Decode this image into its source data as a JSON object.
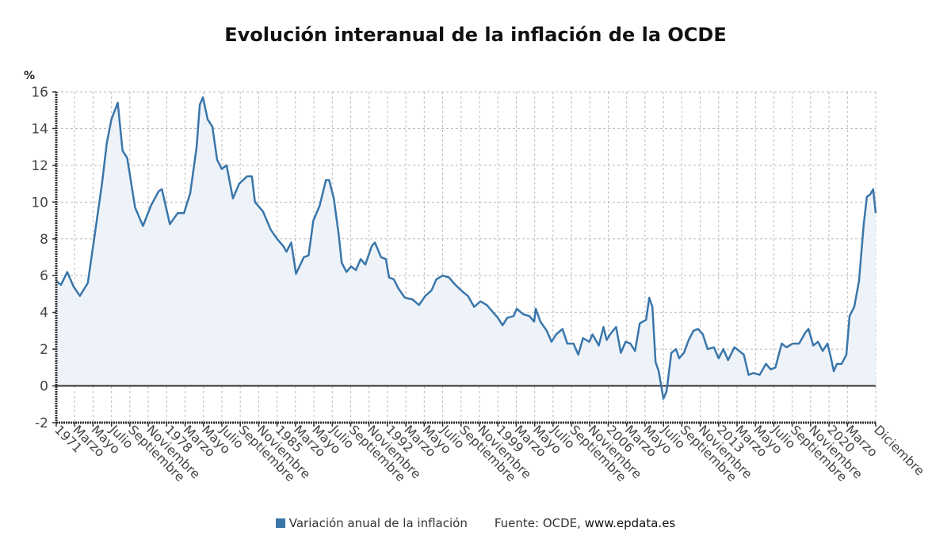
{
  "chart_data": {
    "type": "area",
    "title": "Evolución interanual de la inflación de la OCDE",
    "ylabel": "%",
    "xlabel": "",
    "ylim": [
      -2,
      16
    ],
    "yticks": [
      -2,
      0,
      2,
      4,
      6,
      8,
      10,
      12,
      14,
      16
    ],
    "xlim": [
      1971.0,
      2022.96
    ],
    "grid": true,
    "x_tick_step_months": 14,
    "x_tick_labels": [
      "1971",
      "Marzo",
      "Mayo",
      "Julio",
      "Septiembre",
      "Noviembre",
      "1978",
      "Marzo",
      "Mayo",
      "Julio",
      "Septiembre",
      "Noviembre",
      "1985",
      "Marzo",
      "Mayo",
      "Julio",
      "Septiembre",
      "Noviembre",
      "1992",
      "Marzo",
      "Mayo",
      "Julio",
      "Septiembre",
      "Noviembre",
      "1999",
      "Marzo",
      "Mayo",
      "Julio",
      "Septiembre",
      "Noviembre",
      "2006",
      "Marzo",
      "Mayo",
      "Julio",
      "Septiembre",
      "Noviembre",
      "2013",
      "Marzo",
      "Mayo",
      "Julio",
      "Septiembre",
      "Noviembre",
      "2020",
      "Marzo",
      "Diciembre"
    ],
    "legend": {
      "position": "bottom",
      "entries": [
        "Variación anual de la inflación"
      ]
    },
    "source": "Fuente: OCDE,",
    "source_web": "www.epdata.es",
    "series": [
      {
        "name": "Variación anual de la inflación",
        "color": "#3a76aa",
        "points": [
          [
            1971.0,
            5.7
          ],
          [
            1971.3,
            5.5
          ],
          [
            1971.7,
            6.2
          ],
          [
            1972.1,
            5.4
          ],
          [
            1972.5,
            4.9
          ],
          [
            1973.0,
            5.6
          ],
          [
            1973.4,
            8.0
          ],
          [
            1973.9,
            11.0
          ],
          [
            1974.2,
            13.2
          ],
          [
            1974.5,
            14.5
          ],
          [
            1974.9,
            15.4
          ],
          [
            1975.2,
            12.8
          ],
          [
            1975.5,
            12.4
          ],
          [
            1976.0,
            9.7
          ],
          [
            1976.5,
            8.7
          ],
          [
            1977.0,
            9.8
          ],
          [
            1977.5,
            10.6
          ],
          [
            1977.7,
            10.7
          ],
          [
            1978.2,
            8.8
          ],
          [
            1978.7,
            9.4
          ],
          [
            1979.1,
            9.4
          ],
          [
            1979.5,
            10.5
          ],
          [
            1979.9,
            13.0
          ],
          [
            1980.1,
            15.3
          ],
          [
            1980.3,
            15.7
          ],
          [
            1980.6,
            14.5
          ],
          [
            1980.9,
            14.1
          ],
          [
            1981.2,
            12.3
          ],
          [
            1981.5,
            11.8
          ],
          [
            1981.8,
            12.0
          ],
          [
            1982.2,
            10.2
          ],
          [
            1982.6,
            11.0
          ],
          [
            1983.1,
            11.4
          ],
          [
            1983.4,
            11.4
          ],
          [
            1983.6,
            10.0
          ],
          [
            1984.1,
            9.5
          ],
          [
            1984.6,
            8.5
          ],
          [
            1985.0,
            8.0
          ],
          [
            1985.4,
            7.6
          ],
          [
            1985.6,
            7.3
          ],
          [
            1985.9,
            7.8
          ],
          [
            1986.2,
            6.1
          ],
          [
            1986.7,
            7.0
          ],
          [
            1987.0,
            7.1
          ],
          [
            1987.3,
            9.0
          ],
          [
            1987.7,
            9.8
          ],
          [
            1988.1,
            11.2
          ],
          [
            1988.3,
            11.2
          ],
          [
            1988.6,
            10.2
          ],
          [
            1988.9,
            8.3
          ],
          [
            1989.1,
            6.7
          ],
          [
            1989.4,
            6.2
          ],
          [
            1989.7,
            6.5
          ],
          [
            1990.0,
            6.3
          ],
          [
            1990.3,
            6.9
          ],
          [
            1990.6,
            6.6
          ],
          [
            1991.0,
            7.6
          ],
          [
            1991.2,
            7.8
          ],
          [
            1991.6,
            7.0
          ],
          [
            1991.9,
            6.9
          ],
          [
            1992.1,
            5.9
          ],
          [
            1992.4,
            5.8
          ],
          [
            1992.7,
            5.3
          ],
          [
            1993.1,
            4.8
          ],
          [
            1993.6,
            4.7
          ],
          [
            1994.0,
            4.4
          ],
          [
            1994.4,
            4.9
          ],
          [
            1994.8,
            5.2
          ],
          [
            1995.1,
            5.8
          ],
          [
            1995.5,
            6.0
          ],
          [
            1995.9,
            5.9
          ],
          [
            1996.3,
            5.5
          ],
          [
            1996.8,
            5.1
          ],
          [
            1997.1,
            4.9
          ],
          [
            1997.5,
            4.3
          ],
          [
            1997.9,
            4.6
          ],
          [
            1998.3,
            4.4
          ],
          [
            1998.7,
            4.0
          ],
          [
            1999.0,
            3.7
          ],
          [
            1999.3,
            3.3
          ],
          [
            1999.6,
            3.7
          ],
          [
            2000.0,
            3.8
          ],
          [
            2000.2,
            4.2
          ],
          [
            2000.6,
            3.9
          ],
          [
            2001.0,
            3.8
          ],
          [
            2001.3,
            3.5
          ],
          [
            2001.4,
            4.2
          ],
          [
            2001.7,
            3.5
          ],
          [
            2002.1,
            3.0
          ],
          [
            2002.4,
            2.4
          ],
          [
            2002.7,
            2.8
          ],
          [
            2003.1,
            3.1
          ],
          [
            2003.4,
            2.3
          ],
          [
            2003.8,
            2.3
          ],
          [
            2004.1,
            1.7
          ],
          [
            2004.4,
            2.6
          ],
          [
            2004.8,
            2.4
          ],
          [
            2005.0,
            2.8
          ],
          [
            2005.4,
            2.2
          ],
          [
            2005.7,
            3.2
          ],
          [
            2005.9,
            2.5
          ],
          [
            2006.2,
            2.9
          ],
          [
            2006.5,
            3.2
          ],
          [
            2006.8,
            1.8
          ],
          [
            2007.1,
            2.4
          ],
          [
            2007.4,
            2.3
          ],
          [
            2007.7,
            1.9
          ],
          [
            2008.0,
            3.4
          ],
          [
            2008.4,
            3.6
          ],
          [
            2008.6,
            4.8
          ],
          [
            2008.8,
            4.3
          ],
          [
            2009.0,
            1.3
          ],
          [
            2009.2,
            0.8
          ],
          [
            2009.5,
            -0.7
          ],
          [
            2009.7,
            -0.3
          ],
          [
            2010.0,
            1.8
          ],
          [
            2010.3,
            2.0
          ],
          [
            2010.5,
            1.5
          ],
          [
            2010.8,
            1.8
          ],
          [
            2011.1,
            2.5
          ],
          [
            2011.4,
            3.0
          ],
          [
            2011.7,
            3.1
          ],
          [
            2012.0,
            2.8
          ],
          [
            2012.3,
            2.0
          ],
          [
            2012.7,
            2.1
          ],
          [
            2013.0,
            1.5
          ],
          [
            2013.3,
            2.0
          ],
          [
            2013.6,
            1.4
          ],
          [
            2014.0,
            2.1
          ],
          [
            2014.3,
            1.9
          ],
          [
            2014.6,
            1.7
          ],
          [
            2014.9,
            0.6
          ],
          [
            2015.2,
            0.7
          ],
          [
            2015.6,
            0.6
          ],
          [
            2016.0,
            1.2
          ],
          [
            2016.3,
            0.9
          ],
          [
            2016.6,
            1.0
          ],
          [
            2017.0,
            2.3
          ],
          [
            2017.3,
            2.1
          ],
          [
            2017.7,
            2.3
          ],
          [
            2018.1,
            2.3
          ],
          [
            2018.5,
            2.9
          ],
          [
            2018.7,
            3.1
          ],
          [
            2019.0,
            2.2
          ],
          [
            2019.3,
            2.4
          ],
          [
            2019.6,
            1.9
          ],
          [
            2019.9,
            2.3
          ],
          [
            2020.1,
            1.6
          ],
          [
            2020.3,
            0.8
          ],
          [
            2020.5,
            1.2
          ],
          [
            2020.8,
            1.2
          ],
          [
            2021.1,
            1.7
          ],
          [
            2021.3,
            3.8
          ],
          [
            2021.6,
            4.3
          ],
          [
            2021.9,
            5.7
          ],
          [
            2022.2,
            8.8
          ],
          [
            2022.4,
            10.3
          ],
          [
            2022.6,
            10.4
          ],
          [
            2022.8,
            10.7
          ],
          [
            2022.96,
            9.4
          ]
        ]
      }
    ]
  }
}
